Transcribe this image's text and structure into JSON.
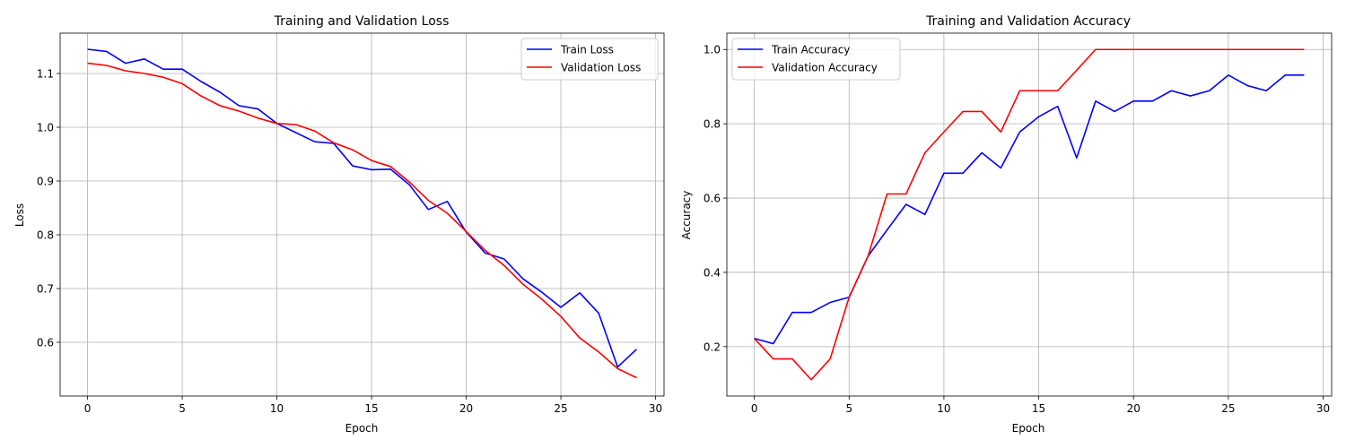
{
  "chart_data": [
    {
      "type": "line",
      "title": "Training and Validation Loss",
      "xlabel": "Epoch",
      "ylabel": "Loss",
      "xlim": [
        -1.45,
        30.45
      ],
      "ylim": [
        0.5,
        1.175
      ],
      "xticks": [
        0,
        5,
        10,
        15,
        20,
        25,
        30
      ],
      "yticks": [
        0.6,
        0.7,
        0.8,
        0.9,
        1.0,
        1.1
      ],
      "grid": true,
      "legend_position": "upper right",
      "x": [
        0,
        1,
        2,
        3,
        4,
        5,
        6,
        7,
        8,
        9,
        10,
        11,
        12,
        13,
        14,
        15,
        16,
        17,
        18,
        19,
        20,
        21,
        22,
        23,
        24,
        25,
        26,
        27,
        28,
        29
      ],
      "series": [
        {
          "name": "Train Loss",
          "color": "#0000ff",
          "values": [
            1.145,
            1.141,
            1.119,
            1.127,
            1.108,
            1.108,
            1.085,
            1.065,
            1.04,
            1.034,
            1.007,
            0.99,
            0.973,
            0.97,
            0.928,
            0.921,
            0.922,
            0.893,
            0.847,
            0.862,
            0.805,
            0.766,
            0.755,
            0.718,
            0.693,
            0.665,
            0.692,
            0.654,
            0.554,
            0.587
          ]
        },
        {
          "name": "Validation Loss",
          "color": "#ff0000",
          "values": [
            1.119,
            1.115,
            1.105,
            1.1,
            1.093,
            1.081,
            1.058,
            1.04,
            1.03,
            1.017,
            1.007,
            1.005,
            0.993,
            0.971,
            0.958,
            0.938,
            0.927,
            0.898,
            0.864,
            0.84,
            0.806,
            0.771,
            0.743,
            0.708,
            0.68,
            0.648,
            0.608,
            0.582,
            0.551,
            0.534
          ]
        }
      ]
    },
    {
      "type": "line",
      "title": "Training and Validation Accuracy",
      "xlabel": "Epoch",
      "ylabel": "Accuracy",
      "xlim": [
        -1.45,
        30.45
      ],
      "ylim": [
        0.067,
        1.044
      ],
      "xticks": [
        0,
        5,
        10,
        15,
        20,
        25,
        30
      ],
      "yticks": [
        0.2,
        0.4,
        0.6,
        0.8,
        1.0
      ],
      "grid": true,
      "legend_position": "upper left",
      "x": [
        0,
        1,
        2,
        3,
        4,
        5,
        6,
        7,
        8,
        9,
        10,
        11,
        12,
        13,
        14,
        15,
        16,
        17,
        18,
        19,
        20,
        21,
        22,
        23,
        24,
        25,
        26,
        27,
        28,
        29
      ],
      "series": [
        {
          "name": "Train Accuracy",
          "color": "#0000ff",
          "values": [
            0.222,
            0.208,
            0.292,
            0.292,
            0.319,
            0.333,
            0.444,
            0.514,
            0.583,
            0.556,
            0.667,
            0.667,
            0.722,
            0.681,
            0.778,
            0.819,
            0.847,
            0.708,
            0.861,
            0.833,
            0.861,
            0.861,
            0.889,
            0.875,
            0.889,
            0.931,
            0.903,
            0.889,
            0.931,
            0.931
          ]
        },
        {
          "name": "Validation Accuracy",
          "color": "#ff0000",
          "values": [
            0.222,
            0.167,
            0.167,
            0.111,
            0.167,
            0.333,
            0.444,
            0.611,
            0.611,
            0.722,
            0.778,
            0.833,
            0.833,
            0.778,
            0.889,
            0.889,
            0.889,
            0.944,
            1.0,
            1.0,
            1.0,
            1.0,
            1.0,
            1.0,
            1.0,
            1.0,
            1.0,
            1.0,
            1.0,
            1.0
          ]
        }
      ]
    }
  ]
}
